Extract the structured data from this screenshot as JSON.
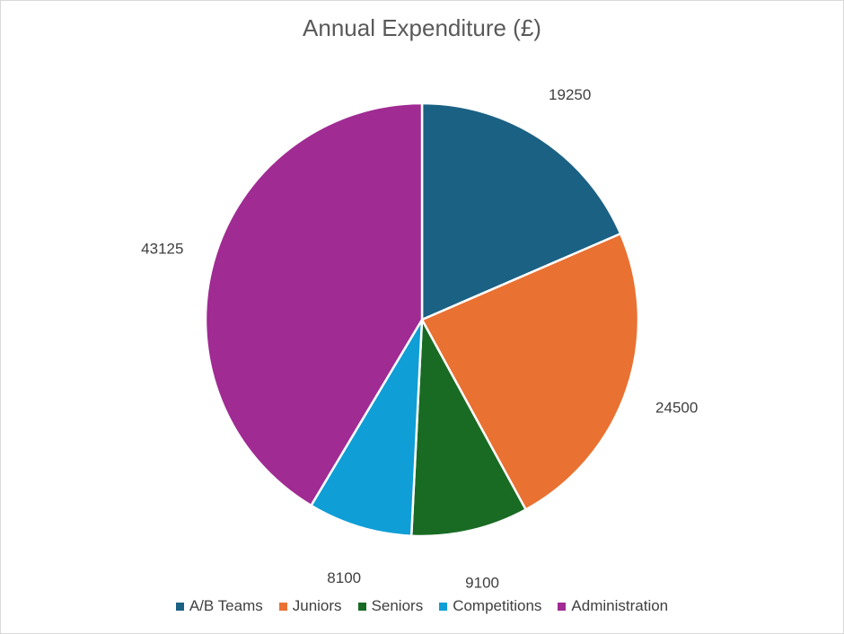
{
  "chart_data": {
    "type": "pie",
    "title": "Annual Expenditure (£)",
    "categories": [
      "A/B Teams",
      "Juniors",
      "Seniors",
      "Competitions",
      "Administration"
    ],
    "values": [
      19250,
      24500,
      9100,
      8100,
      43125
    ],
    "colors": [
      "#1B6184",
      "#E97132",
      "#196B24",
      "#0F9ED5",
      "#A02B93"
    ],
    "data_labels": [
      "19250",
      "24500",
      "9100",
      "8100",
      "43125"
    ],
    "legend_position": "bottom"
  }
}
